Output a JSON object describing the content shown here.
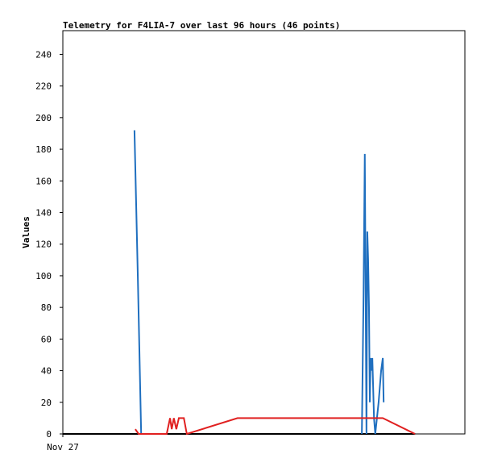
{
  "chart_data": {
    "type": "line",
    "title": "Telemetry for F4LIA-7 over last 96 hours (46 points)",
    "y_label": "Values",
    "xlim": [
      0,
      96
    ],
    "xticks": [
      {
        "value": 0,
        "label": "Nov 27"
      }
    ],
    "ylim": [
      0,
      255
    ],
    "yticks": [
      0,
      20,
      40,
      60,
      80,
      100,
      120,
      140,
      160,
      180,
      200,
      220,
      240
    ],
    "series": [
      {
        "color": "#000000",
        "x": [
          0,
          84.1
        ],
        "values": [
          0,
          0
        ]
      },
      {
        "color": "#1f6fbf",
        "x": [
          17.1,
          17.9,
          18.7,
          40,
          71.4,
          71.8,
          72.0,
          72.1,
          72.5,
          72.7,
          72.9,
          73.1,
          73.3,
          73.5,
          73.7,
          73.9,
          74.3,
          74.6,
          75.4,
          76.0,
          76.4,
          76.6
        ],
        "values": [
          192,
          100,
          0,
          null,
          0,
          88,
          147,
          177,
          0,
          128,
          110,
          80,
          20,
          48,
          40,
          48,
          10,
          0,
          20,
          40,
          48,
          20
        ]
      },
      {
        "color": "#e02020",
        "x": [
          17.3,
          18.1,
          24.8,
          25.6,
          26.0,
          26.5,
          27.1,
          27.7,
          28.9,
          29.6,
          41.7,
          76.4,
          84.1
        ],
        "values": [
          3,
          0,
          0,
          10,
          3,
          10,
          3,
          10,
          10,
          0,
          10,
          10,
          0
        ]
      }
    ]
  }
}
